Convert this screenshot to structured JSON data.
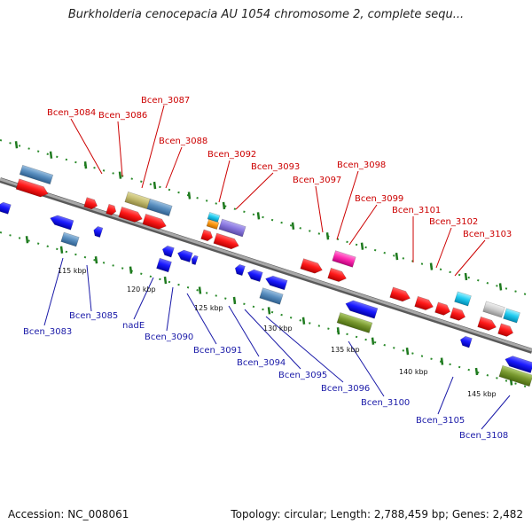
{
  "title": "Burkholderia cenocepacia AU 1054 chromosome 2, complete sequ...",
  "footer": {
    "accession": "Accession: NC_008061",
    "summary": "Topology: circular; Length: 2,788,459 bp; Genes: 2,482"
  },
  "colors": {
    "red_label": "#cc0000",
    "blue_label": "#1a1aa8",
    "backbone": "#8a8a8a",
    "tick_green": "#1e7a1e"
  },
  "scale_labels": [
    {
      "kbp": 115,
      "text": "115 kbp"
    },
    {
      "kbp": 120,
      "text": "120 kbp"
    },
    {
      "kbp": 125,
      "text": "125 kbp"
    },
    {
      "kbp": 130,
      "text": "130 kbp"
    },
    {
      "kbp": 135,
      "text": "135 kbp"
    },
    {
      "kbp": 140,
      "text": "140 kbp"
    },
    {
      "kbp": 145,
      "text": "145 kbp"
    }
  ],
  "top_labels": [
    {
      "text": "Bcen_3084"
    },
    {
      "text": "Bcen_3086"
    },
    {
      "text": "Bcen_3087"
    },
    {
      "text": "Bcen_3088"
    },
    {
      "text": "Bcen_3092"
    },
    {
      "text": "Bcen_3093"
    },
    {
      "text": "Bcen_3097"
    },
    {
      "text": "Bcen_3098"
    },
    {
      "text": "Bcen_3099"
    },
    {
      "text": "Bcen_3101"
    },
    {
      "text": "Bcen_3102"
    },
    {
      "text": "Bcen_3103"
    }
  ],
  "bottom_labels": [
    {
      "text": "Bcen_3083"
    },
    {
      "text": "Bcen_3085"
    },
    {
      "text": "nadE"
    },
    {
      "text": "Bcen_3090"
    },
    {
      "text": "Bcen_3091"
    },
    {
      "text": "Bcen_3094"
    },
    {
      "text": "Bcen_3095"
    },
    {
      "text": "Bcen_3096"
    },
    {
      "text": "Bcen_3100"
    },
    {
      "text": "Bcen_3105"
    },
    {
      "text": "Bcen_3108"
    }
  ]
}
